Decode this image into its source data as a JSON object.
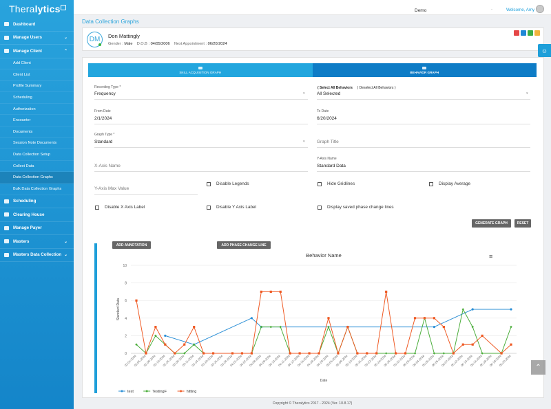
{
  "app": {
    "logo_light": "Thera",
    "logo_bold": "lytics"
  },
  "sidebar": {
    "items": [
      {
        "label": "Dashboard"
      },
      {
        "label": "Manage Users"
      },
      {
        "label": "Manage Client"
      }
    ],
    "sub_items": [
      {
        "label": "Add Client"
      },
      {
        "label": "Client List"
      },
      {
        "label": "Profile Summary"
      },
      {
        "label": "Scheduling"
      },
      {
        "label": "Authorization"
      },
      {
        "label": "Encounter"
      },
      {
        "label": "Documents"
      },
      {
        "label": "Session Note Documents"
      },
      {
        "label": "Data Collection Setup"
      },
      {
        "label": "Collect Data"
      },
      {
        "label": "Data Collection Graphs"
      },
      {
        "label": "Bulk Data Collection Graphs"
      }
    ],
    "items2": [
      {
        "label": "Scheduling"
      },
      {
        "label": "Clearing House"
      },
      {
        "label": "Manage Payer"
      },
      {
        "label": "Masters"
      },
      {
        "label": "Masters Data Collection"
      }
    ]
  },
  "topbar": {
    "org": "Demo",
    "separator": "-",
    "welcome": "Welcome, Amy"
  },
  "page": {
    "title": "Data Collection Graphs"
  },
  "patient": {
    "initials": "DM",
    "name": "Don Mattingly",
    "gender_label": "Gender :",
    "gender": "Male",
    "dob_label": "D.O.B :",
    "dob": "04/05/2006",
    "next_label": "Next Appointment :",
    "next": "06/20/2024"
  },
  "tabs": {
    "skill": "SKILL ACQUISITION GRAPH",
    "behavior": "BEHAVIOR GRAPH"
  },
  "form": {
    "recording_type_label": "Recording Type *",
    "recording_type": "Frequency",
    "select_all": "( Select All Behaviors",
    "deselect_all": "| Deselect All Behaviors )",
    "behaviors": "All Selected",
    "from_label": "From Date",
    "from": "2/1/2024",
    "to_label": "To Date",
    "to": "6/20/2024",
    "graph_type_label": "Graph Type *",
    "graph_type": "Standard",
    "graph_title_ph": "Graph Title",
    "xaxis_ph": "X-Axis Name",
    "yaxis_label": "Y-Axis Name",
    "yaxis": "Standard Data",
    "ymax_ph": "Y-Axis Max Value",
    "disable_legends": "Disable Legends",
    "hide_grid": "Hide Gridlines",
    "display_avg": "Display Average",
    "disable_x": "Disable X Axis Label",
    "disable_y": "Disable Y Axis Label",
    "phase_lines": "Display saved phase change lines",
    "generate": "GENERATE GRAPH",
    "reset": "RESET"
  },
  "chart_buttons": {
    "annotation": "ADD ANNOTATION",
    "phase": "ADD PHASE CHANGE LINE"
  },
  "chart_data": {
    "type": "line",
    "title": "Behavior Name",
    "xlabel": "Date",
    "ylabel": "Standard Data",
    "ylim": [
      0,
      10
    ],
    "yticks": [
      0,
      2,
      4,
      6,
      8,
      10
    ],
    "grid": true,
    "legend": "bottom-left",
    "categories": [
      "02-01-2024",
      "02-05-2024",
      "02-08-2024",
      "02-13-2024",
      "02-26-2024",
      "03-05-2024",
      "03-11-2024",
      "03-14-2024",
      "03-19-2024",
      "03-26-2024",
      "03-28-2024",
      "04-01-2024",
      "04-02-2024",
      "04-08-2024",
      "04-09-2024",
      "04-10-2024",
      "04-11-2024",
      "04-12-2024",
      "04-16-2024",
      "04-18-2024",
      "04-29-2024",
      "05-06-2024",
      "05-08-2024",
      "05-13-2024",
      "05-16-2024",
      "05-22-2024",
      "05-24-2024",
      "05-28-2024",
      "05-31-2024",
      "06-03-2024",
      "06-04-2024",
      "06-05-2024",
      "06-06-2024",
      "06-07-2024",
      "06-12-2024",
      "06-13-2024",
      "06-14-2024",
      "06-18-2024",
      "06-19-2024",
      "06-20-2024"
    ],
    "series": [
      {
        "name": "test",
        "color": "#2b8fd6",
        "values": [
          null,
          null,
          null,
          2,
          null,
          null,
          1,
          null,
          null,
          null,
          null,
          null,
          4,
          3,
          null,
          null,
          null,
          null,
          null,
          null,
          null,
          null,
          null,
          null,
          null,
          null,
          null,
          null,
          null,
          null,
          null,
          3,
          null,
          null,
          null,
          5,
          null,
          null,
          null,
          5
        ]
      },
      {
        "name": "TestingF",
        "color": "#4cae3c",
        "values": [
          1,
          0,
          2,
          1,
          0,
          0,
          1,
          0,
          0,
          null,
          0,
          0,
          0,
          3,
          3,
          3,
          0,
          0,
          0,
          0,
          3,
          0,
          3,
          0,
          0,
          0,
          0,
          0,
          0,
          0,
          4,
          0,
          0,
          0,
          5,
          3,
          0,
          null,
          0,
          3
        ]
      },
      {
        "name": "hitting",
        "color": "#ef5a24",
        "values": [
          6,
          0,
          3,
          1,
          0,
          1,
          3,
          0,
          0,
          null,
          0,
          0,
          0,
          7,
          7,
          7,
          0,
          0,
          0,
          0,
          4,
          0,
          3,
          0,
          0,
          0,
          7,
          0,
          0,
          4,
          4,
          4,
          3,
          0,
          1,
          1,
          2,
          null,
          0,
          1
        ]
      }
    ]
  },
  "footer": "Copyright © Theralytics 2017 - 2024 (Ver. 10.8.17)"
}
